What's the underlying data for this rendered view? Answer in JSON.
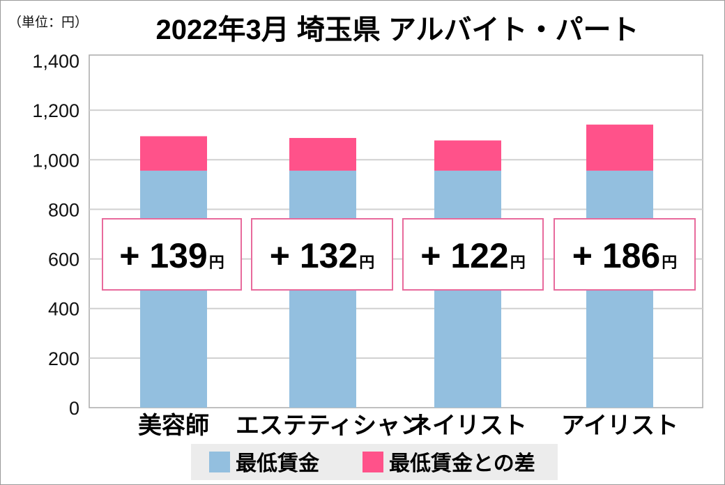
{
  "chart_data": {
    "type": "bar",
    "stacked": true,
    "title": "2022年3月 埼玉県 アルバイト・パート",
    "unit_label": "（単位：円）",
    "categories": [
      "美容師",
      "エステティシャン",
      "ネイリスト",
      "アイリスト"
    ],
    "series": [
      {
        "name": "最低賃金",
        "values": [
          956,
          956,
          956,
          956
        ],
        "color": "#93bfdf"
      },
      {
        "name": "最低賃金との差",
        "values": [
          139,
          132,
          122,
          186
        ],
        "color": "#ff528a"
      }
    ],
    "data_labels": [
      {
        "sign": "+",
        "value": "139",
        "suffix": "円"
      },
      {
        "sign": "+",
        "value": "132",
        "suffix": "円"
      },
      {
        "sign": "+",
        "value": "122",
        "suffix": "円"
      },
      {
        "sign": "+",
        "value": "186",
        "suffix": "円"
      }
    ],
    "ylim": [
      0,
      1400
    ],
    "yticks": [
      "0",
      "200",
      "400",
      "600",
      "800",
      "1,000",
      "1,200",
      "1,400"
    ],
    "ytick_values": [
      0,
      200,
      400,
      600,
      800,
      1000,
      1200,
      1400
    ],
    "grid": true,
    "legend_position": "bottom",
    "label_box_border": "#e86a9c"
  }
}
